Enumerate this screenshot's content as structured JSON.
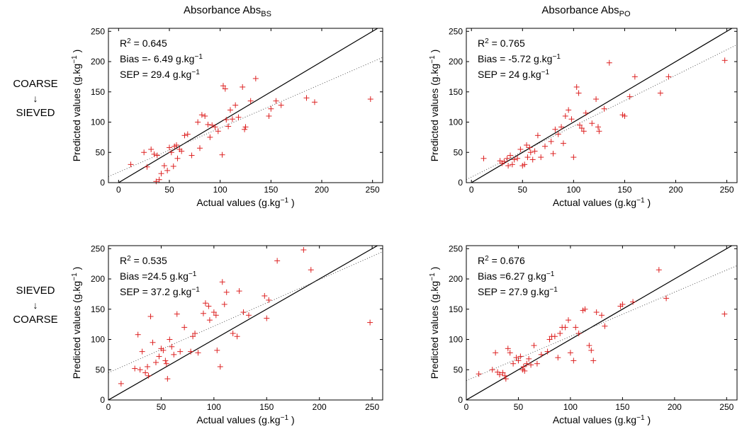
{
  "column_titles": [
    {
      "text": "Absorbance Abs",
      "sub": "BS"
    },
    {
      "text": "Absorbance Abs",
      "sub": "PO"
    }
  ],
  "row_labels": [
    {
      "top": "COARSE",
      "arrow": "↓",
      "bottom": "SIEVED"
    },
    {
      "top": "SIEVED",
      "arrow": "↓",
      "bottom": "COARSE"
    }
  ],
  "colors": {
    "points": "#dd2222",
    "identity_line": "#000000",
    "fit_line": "#555555"
  },
  "chart_data": [
    {
      "type": "scatter",
      "title": "Absorbance Abs BS — COARSE to SIEVED",
      "xlabel": "Actual values (g.kg⁻¹ )",
      "ylabel": "Predicted values (g.kg⁻¹ )",
      "xlim": [
        -10,
        260
      ],
      "ylim": [
        0,
        255
      ],
      "xticks": [
        0,
        50,
        100,
        150,
        200,
        250
      ],
      "yticks": [
        0,
        50,
        100,
        150,
        200,
        250
      ],
      "stats": [
        "R² = 0.645",
        "Bias =- 6.49 g.kg⁻¹",
        "SEP = 29.4 g.kg⁻¹"
      ],
      "fit_line": {
        "x": [
          -10,
          260
        ],
        "y": [
          10,
          207
        ]
      },
      "series": [
        {
          "marker": "+",
          "points": [
            [
              12,
              30
            ],
            [
              25,
              50
            ],
            [
              28,
              26
            ],
            [
              32,
              55
            ],
            [
              35,
              47
            ],
            [
              37,
              2
            ],
            [
              38,
              45
            ],
            [
              40,
              5
            ],
            [
              42,
              15
            ],
            [
              45,
              28
            ],
            [
              48,
              20
            ],
            [
              50,
              58
            ],
            [
              52,
              50
            ],
            [
              54,
              27
            ],
            [
              55,
              60
            ],
            [
              57,
              62
            ],
            [
              58,
              40
            ],
            [
              60,
              55
            ],
            [
              62,
              52
            ],
            [
              65,
              78
            ],
            [
              68,
              80
            ],
            [
              72,
              45
            ],
            [
              78,
              100
            ],
            [
              80,
              57
            ],
            [
              82,
              112
            ],
            [
              85,
              110
            ],
            [
              88,
              96
            ],
            [
              90,
              75
            ],
            [
              92,
              95
            ],
            [
              95,
              92
            ],
            [
              98,
              85
            ],
            [
              102,
              46
            ],
            [
              103,
              160
            ],
            [
              105,
              155
            ],
            [
              106,
              104
            ],
            [
              108,
              93
            ],
            [
              110,
              120
            ],
            [
              112,
              105
            ],
            [
              115,
              128
            ],
            [
              118,
              108
            ],
            [
              122,
              158
            ],
            [
              124,
              88
            ],
            [
              125,
              92
            ],
            [
              130,
              135
            ],
            [
              135,
              172
            ],
            [
              148,
              110
            ],
            [
              150,
              122
            ],
            [
              155,
              135
            ],
            [
              160,
              128
            ],
            [
              185,
              140
            ],
            [
              193,
              133
            ],
            [
              248,
              138
            ]
          ]
        }
      ]
    },
    {
      "type": "scatter",
      "title": "Absorbance Abs PO — COARSE to SIEVED",
      "xlabel": "Actual values (g.kg⁻¹ )",
      "ylabel": "Predicted values (g.kg⁻¹ )",
      "xlim": [
        -5,
        260
      ],
      "ylim": [
        0,
        255
      ],
      "xticks": [
        0,
        50,
        100,
        150,
        200,
        250
      ],
      "yticks": [
        0,
        50,
        100,
        150,
        200,
        250
      ],
      "stats": [
        "R² = 0.765",
        "Bias = -5.72 g.kg⁻¹",
        "SEP = 24 g.kg⁻¹"
      ],
      "fit_line": {
        "x": [
          -5,
          260
        ],
        "y": [
          5,
          228
        ]
      },
      "series": [
        {
          "marker": "+",
          "points": [
            [
              12,
              40
            ],
            [
              28,
              36
            ],
            [
              30,
              32
            ],
            [
              32,
              35
            ],
            [
              35,
              40
            ],
            [
              36,
              28
            ],
            [
              38,
              45
            ],
            [
              40,
              30
            ],
            [
              42,
              38
            ],
            [
              45,
              40
            ],
            [
              48,
              55
            ],
            [
              50,
              28
            ],
            [
              52,
              30
            ],
            [
              54,
              62
            ],
            [
              55,
              42
            ],
            [
              57,
              58
            ],
            [
              58,
              50
            ],
            [
              60,
              38
            ],
            [
              62,
              52
            ],
            [
              65,
              78
            ],
            [
              68,
              42
            ],
            [
              72,
              60
            ],
            [
              78,
              68
            ],
            [
              80,
              48
            ],
            [
              82,
              88
            ],
            [
              85,
              80
            ],
            [
              88,
              92
            ],
            [
              90,
              65
            ],
            [
              92,
              110
            ],
            [
              95,
              120
            ],
            [
              98,
              105
            ],
            [
              100,
              42
            ],
            [
              103,
              158
            ],
            [
              105,
              148
            ],
            [
              106,
              95
            ],
            [
              108,
              90
            ],
            [
              110,
              85
            ],
            [
              112,
              115
            ],
            [
              118,
              98
            ],
            [
              122,
              138
            ],
            [
              124,
              92
            ],
            [
              125,
              85
            ],
            [
              130,
              122
            ],
            [
              135,
              198
            ],
            [
              148,
              112
            ],
            [
              150,
              110
            ],
            [
              155,
              142
            ],
            [
              160,
              175
            ],
            [
              185,
              148
            ],
            [
              193,
              175
            ],
            [
              248,
              202
            ]
          ]
        }
      ]
    },
    {
      "type": "scatter",
      "title": "Absorbance Abs BS — SIEVED to COARSE",
      "xlabel": "Actual values (g.kg⁻¹ )",
      "ylabel": "Predicted values (g.kg⁻¹ )",
      "xlim": [
        0,
        260
      ],
      "ylim": [
        0,
        255
      ],
      "xticks": [
        0,
        50,
        100,
        150,
        200,
        250
      ],
      "yticks": [
        0,
        50,
        100,
        150,
        200,
        250
      ],
      "stats": [
        "R² = 0.535",
        "Bias =24.5 g.kg⁻¹",
        "SEP = 37.2 g.kg⁻¹"
      ],
      "fit_line": {
        "x": [
          0,
          260
        ],
        "y": [
          45,
          245
        ]
      },
      "series": [
        {
          "marker": "+",
          "points": [
            [
              12,
              27
            ],
            [
              25,
              52
            ],
            [
              28,
              108
            ],
            [
              30,
              50
            ],
            [
              32,
              80
            ],
            [
              35,
              45
            ],
            [
              37,
              55
            ],
            [
              38,
              40
            ],
            [
              40,
              138
            ],
            [
              42,
              95
            ],
            [
              45,
              62
            ],
            [
              48,
              72
            ],
            [
              50,
              85
            ],
            [
              52,
              82
            ],
            [
              54,
              65
            ],
            [
              55,
              60
            ],
            [
              56,
              35
            ],
            [
              58,
              100
            ],
            [
              60,
              88
            ],
            [
              62,
              75
            ],
            [
              65,
              142
            ],
            [
              68,
              80
            ],
            [
              72,
              120
            ],
            [
              78,
              80
            ],
            [
              80,
              105
            ],
            [
              82,
              110
            ],
            [
              85,
              78
            ],
            [
              90,
              143
            ],
            [
              92,
              160
            ],
            [
              95,
              155
            ],
            [
              96,
              132
            ],
            [
              100,
              145
            ],
            [
              102,
              140
            ],
            [
              103,
              82
            ],
            [
              106,
              55
            ],
            [
              108,
              195
            ],
            [
              110,
              158
            ],
            [
              112,
              178
            ],
            [
              118,
              110
            ],
            [
              122,
              105
            ],
            [
              124,
              180
            ],
            [
              128,
              145
            ],
            [
              133,
              140
            ],
            [
              148,
              172
            ],
            [
              150,
              135
            ],
            [
              152,
              165
            ],
            [
              160,
              230
            ],
            [
              185,
              248
            ],
            [
              192,
              215
            ],
            [
              248,
              128
            ]
          ]
        }
      ]
    },
    {
      "type": "scatter",
      "title": "Absorbance Abs PO — SIEVED to COARSE",
      "xlabel": "Actual values (g.kg⁻¹ )",
      "ylabel": "Predicted values (g.kg⁻¹ )",
      "xlim": [
        0,
        260
      ],
      "ylim": [
        0,
        255
      ],
      "xticks": [
        0,
        50,
        100,
        150,
        200,
        250
      ],
      "yticks": [
        0,
        50,
        100,
        150,
        200,
        250
      ],
      "stats": [
        "R² = 0.676",
        "Bias =6.27 g.kg⁻¹",
        "SEP = 27.9 g.kg⁻¹"
      ],
      "fit_line": {
        "x": [
          0,
          260
        ],
        "y": [
          32,
          222
        ]
      },
      "series": [
        {
          "marker": "+",
          "points": [
            [
              12,
              43
            ],
            [
              25,
              50
            ],
            [
              28,
              78
            ],
            [
              30,
              46
            ],
            [
              32,
              42
            ],
            [
              35,
              45
            ],
            [
              37,
              40
            ],
            [
              38,
              35
            ],
            [
              40,
              85
            ],
            [
              42,
              78
            ],
            [
              45,
              60
            ],
            [
              48,
              70
            ],
            [
              50,
              65
            ],
            [
              52,
              72
            ],
            [
              54,
              50
            ],
            [
              55,
              55
            ],
            [
              56,
              48
            ],
            [
              58,
              60
            ],
            [
              60,
              68
            ],
            [
              62,
              58
            ],
            [
              65,
              90
            ],
            [
              68,
              60
            ],
            [
              72,
              75
            ],
            [
              78,
              80
            ],
            [
              80,
              100
            ],
            [
              82,
              105
            ],
            [
              85,
              105
            ],
            [
              88,
              70
            ],
            [
              90,
              110
            ],
            [
              92,
              120
            ],
            [
              95,
              120
            ],
            [
              98,
              132
            ],
            [
              100,
              78
            ],
            [
              103,
              65
            ],
            [
              105,
              120
            ],
            [
              108,
              110
            ],
            [
              112,
              148
            ],
            [
              114,
              150
            ],
            [
              118,
              90
            ],
            [
              120,
              82
            ],
            [
              122,
              65
            ],
            [
              125,
              145
            ],
            [
              130,
              140
            ],
            [
              133,
              122
            ],
            [
              148,
              155
            ],
            [
              150,
              158
            ],
            [
              160,
              162
            ],
            [
              185,
              215
            ],
            [
              192,
              168
            ],
            [
              248,
              142
            ]
          ]
        }
      ]
    }
  ]
}
